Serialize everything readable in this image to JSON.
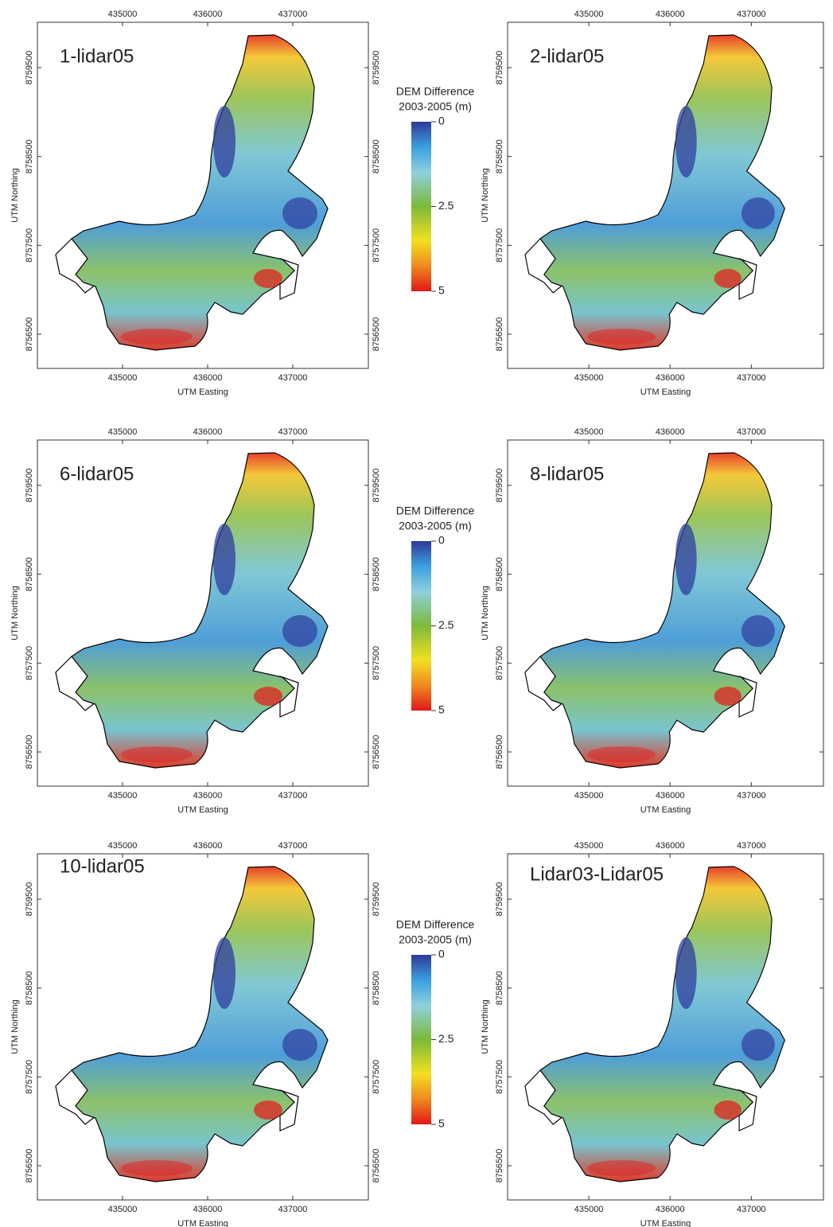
{
  "axes": {
    "x_ticks": [
      435000,
      436000,
      437000
    ],
    "y_ticks": [
      8759500,
      8758500,
      8757500,
      8756500
    ],
    "x_label": "UTM Easting",
    "y_label": "UTM Northing"
  },
  "panels": [
    {
      "title": "1-lidar05"
    },
    {
      "title": "2-lidar05"
    },
    {
      "title": "6-lidar05"
    },
    {
      "title": "8-lidar05"
    },
    {
      "title": "10-lidar05"
    },
    {
      "title": "Lidar03-Lidar05"
    }
  ],
  "legend": {
    "title_lines": [
      "DEM Difference",
      "2003-2005 (m)"
    ],
    "ticks": [
      0,
      2.5,
      5
    ]
  }
}
